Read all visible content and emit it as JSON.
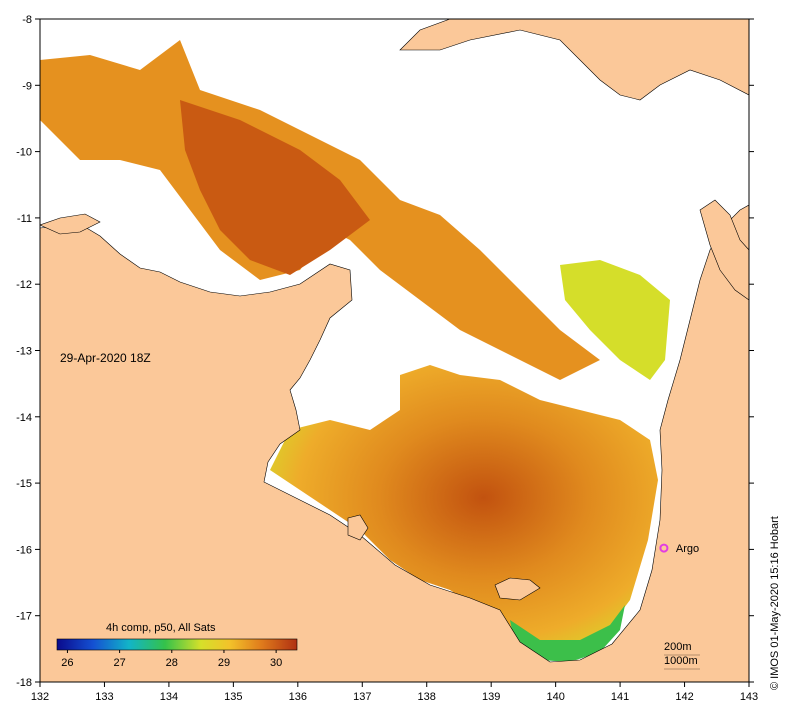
{
  "colors": {
    "land": "#fbc899",
    "cloud": "#ffffff",
    "sst_hot": "#c95a12",
    "sst_warm": "#e5911f",
    "sst_mid": "#f0b22a",
    "sst_cool": "#d5de2a",
    "sst_cooler": "#3cbf4a",
    "argo": "#e23ce2"
  },
  "map": {
    "x_ticks": [
      "132",
      "133",
      "134",
      "135",
      "136",
      "137",
      "138",
      "139",
      "140",
      "141",
      "142",
      "143"
    ],
    "y_ticks": [
      "-8",
      "-9",
      "-10",
      "-11",
      "-12",
      "-13",
      "-14",
      "-15",
      "-16",
      "-17",
      "-18"
    ],
    "lon_range": [
      132,
      143
    ],
    "lat_range": [
      -8,
      -18
    ]
  },
  "annotations": {
    "date_label": "29-Apr-2020 18Z",
    "argo_label": "Argo",
    "argo_lon": 141.68,
    "argo_lat": -15.98,
    "credit": "© IMOS 01-May-2020 15:16 Hobart",
    "depth_200": "200m",
    "depth_1000": "1000m"
  },
  "legend": {
    "title": "4h comp, p50, All Sats",
    "ticks": [
      "26",
      "27",
      "28",
      "29",
      "30"
    ],
    "range": [
      25.8,
      30.4
    ]
  }
}
